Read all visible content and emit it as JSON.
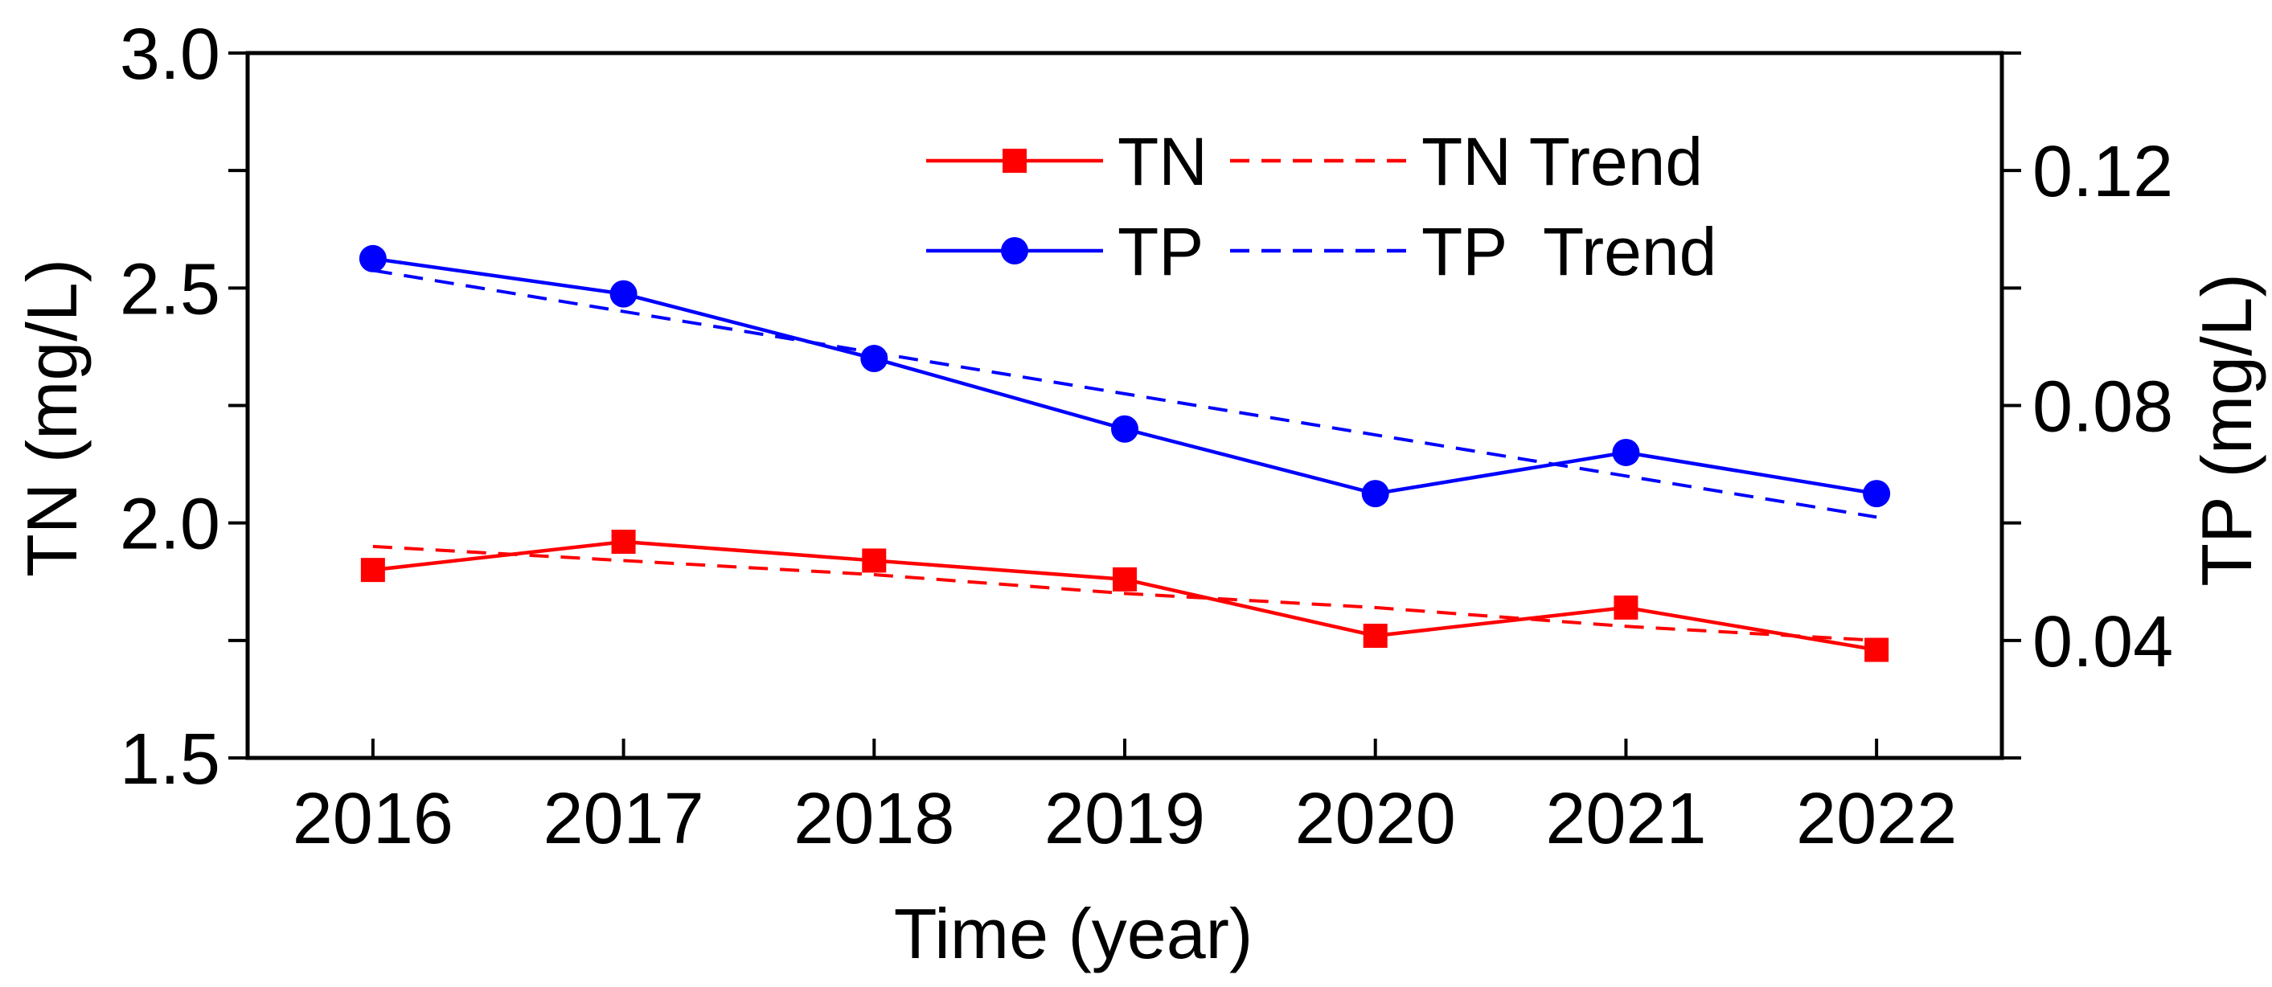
{
  "chart_data": {
    "type": "line",
    "title": "",
    "xlabel": "Time (year)",
    "ylabel": "TN (mg/L)",
    "y2label": "TP (mg/L)",
    "categories": [
      "2016",
      "2017",
      "2018",
      "2019",
      "2020",
      "2021",
      "2022"
    ],
    "xlim": [
      2015.5,
      2022.5
    ],
    "ylim": [
      1.5,
      3.0
    ],
    "y2lim": [
      0.02,
      0.14
    ],
    "yticks": [
      1.5,
      1.75,
      2.0,
      2.25,
      2.5,
      2.75,
      3.0
    ],
    "yticklabels": [
      "1.5",
      "",
      "2.0",
      "",
      "2.5",
      "",
      "3.0"
    ],
    "y2ticks": [
      0.02,
      0.04,
      0.06,
      0.08,
      0.1,
      0.12,
      0.14
    ],
    "y2ticklabels": [
      "",
      "0.04",
      "",
      "0.08",
      "",
      "0.12",
      ""
    ],
    "grid": false,
    "legend_position": "top-right",
    "series": [
      {
        "name": "TN",
        "axis": "left",
        "style": "solid",
        "marker": "square",
        "color": "#ff0000",
        "values": [
          1.9,
          1.96,
          1.92,
          1.88,
          1.76,
          1.82,
          1.73
        ]
      },
      {
        "name": "TN Trend",
        "axis": "left",
        "style": "dashed",
        "marker": "none",
        "color": "#ff0000",
        "values": [
          1.95,
          1.92,
          1.89,
          1.85,
          1.82,
          1.78,
          1.75
        ]
      },
      {
        "name": "TP",
        "axis": "right",
        "style": "solid",
        "marker": "circle",
        "color": "#0000ff",
        "values": [
          0.105,
          0.099,
          0.088,
          0.076,
          0.065,
          0.072,
          0.065
        ]
      },
      {
        "name": "TP  Trend",
        "axis": "right",
        "style": "dashed",
        "marker": "none",
        "color": "#0000ff",
        "values": [
          0.103,
          0.096,
          0.089,
          0.082,
          0.075,
          0.068,
          0.061
        ]
      }
    ]
  }
}
